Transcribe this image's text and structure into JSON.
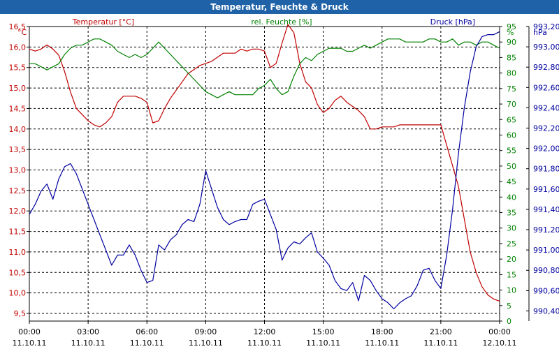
{
  "window": {
    "title": "Temperatur, Feuchte & Druck"
  },
  "chart_data": {
    "type": "line",
    "title": "Temperatur, Feuchte & Druck",
    "x_tick_labels": [
      [
        "00:00",
        "11.10.11"
      ],
      [
        "03:00",
        "11.10.11"
      ],
      [
        "06:00",
        "11.10.11"
      ],
      [
        "09:00",
        "11.10.11"
      ],
      [
        "12:00",
        "11.10.11"
      ],
      [
        "15:00",
        "11.10.11"
      ],
      [
        "18:00",
        "11.10.11"
      ],
      [
        "21:00",
        "11.10.11"
      ],
      [
        "00:00",
        "12.10.11"
      ]
    ],
    "xlim_hours": [
      0,
      24
    ],
    "grid": true,
    "axes": {
      "temperature": {
        "unit": "°C",
        "range": [
          9.5,
          16.5
        ],
        "ticks": [
          "9,5",
          "10,0",
          "10,5",
          "11,0",
          "11,5",
          "12,0",
          "12,5",
          "13,0",
          "13,5",
          "14,0",
          "14,5",
          "15,0",
          "15,5",
          "16,0",
          "16,5"
        ],
        "color": "#c00000"
      },
      "humidity": {
        "unit": "%",
        "range": [
          0,
          95
        ],
        "ticks": [
          "0",
          "5",
          "10",
          "15",
          "20",
          "25",
          "30",
          "35",
          "40",
          "45",
          "50",
          "55",
          "60",
          "65",
          "70",
          "75",
          "80",
          "85",
          "90",
          "95"
        ],
        "color": "#008000"
      },
      "pressure": {
        "unit": "hPa",
        "range": [
          990.3,
          993.2
        ],
        "ticks": [
          "990,40",
          "990,60",
          "990,80",
          "991,00",
          "991,20",
          "991,40",
          "991,60",
          "991,80",
          "992,00",
          "992,20",
          "992,40",
          "992,60",
          "992,80",
          "993,00",
          "993,20"
        ],
        "tick_values": [
          990.4,
          990.6,
          990.8,
          991.0,
          991.2,
          991.4,
          991.6,
          991.8,
          992.0,
          992.2,
          992.4,
          992.6,
          992.8,
          993.0,
          993.2
        ],
        "color": "#0000a0"
      }
    },
    "series": [
      {
        "name": "Temperatur [°C]",
        "axis": "temperature",
        "color": "#c00000",
        "x": [
          0,
          0.3,
          0.6,
          0.9,
          1.2,
          1.5,
          1.8,
          2.1,
          2.4,
          2.7,
          3.0,
          3.3,
          3.6,
          3.9,
          4.2,
          4.5,
          4.8,
          5.1,
          5.4,
          5.7,
          6.0,
          6.3,
          6.6,
          6.9,
          7.2,
          7.5,
          7.8,
          8.1,
          8.4,
          8.7,
          9.0,
          9.3,
          9.6,
          9.9,
          10.2,
          10.5,
          10.8,
          11.1,
          11.4,
          11.7,
          12.0,
          12.3,
          12.6,
          12.9,
          13.2,
          13.5,
          13.8,
          14.1,
          14.4,
          14.7,
          15.0,
          15.3,
          15.6,
          15.9,
          16.2,
          16.5,
          16.8,
          17.1,
          17.4,
          17.7,
          18.0,
          18.3,
          18.6,
          18.9,
          19.2,
          19.5,
          19.8,
          20.1,
          20.4,
          20.7,
          21.0,
          21.3,
          21.6,
          21.9,
          22.2,
          22.5,
          22.8,
          23.1,
          23.4,
          23.7,
          24.0
        ],
        "values": [
          15.95,
          15.9,
          15.95,
          16.05,
          15.95,
          15.8,
          15.4,
          14.9,
          14.5,
          14.35,
          14.2,
          14.1,
          14.05,
          14.15,
          14.3,
          14.65,
          14.8,
          14.8,
          14.8,
          14.75,
          14.65,
          14.15,
          14.2,
          14.5,
          14.75,
          14.95,
          15.15,
          15.35,
          15.45,
          15.55,
          15.6,
          15.65,
          15.75,
          15.85,
          15.85,
          15.85,
          15.95,
          15.9,
          15.95,
          15.95,
          15.9,
          15.5,
          15.6,
          16.1,
          16.55,
          16.35,
          15.6,
          15.15,
          15.0,
          14.6,
          14.4,
          14.5,
          14.7,
          14.8,
          14.65,
          14.55,
          14.45,
          14.3,
          14.0,
          14.0,
          14.05,
          14.05,
          14.05,
          14.1,
          14.1,
          14.1,
          14.1,
          14.1,
          14.1,
          14.1,
          14.1,
          13.6,
          13.1,
          12.6,
          11.8,
          11.0,
          10.5,
          10.15,
          9.95,
          9.85,
          9.8
        ]
      },
      {
        "name": "rel. Feuchte [%]",
        "axis": "humidity",
        "color": "#008000",
        "x": [
          0,
          0.3,
          0.6,
          0.9,
          1.2,
          1.5,
          1.8,
          2.1,
          2.4,
          2.7,
          3.0,
          3.3,
          3.6,
          3.9,
          4.2,
          4.5,
          4.8,
          5.1,
          5.4,
          5.7,
          6.0,
          6.3,
          6.6,
          6.9,
          7.2,
          7.5,
          7.8,
          8.1,
          8.4,
          8.7,
          9.0,
          9.3,
          9.6,
          9.9,
          10.2,
          10.5,
          10.8,
          11.1,
          11.4,
          11.7,
          12.0,
          12.3,
          12.6,
          12.9,
          13.2,
          13.5,
          13.8,
          14.1,
          14.4,
          14.7,
          15.0,
          15.3,
          15.6,
          15.9,
          16.2,
          16.5,
          16.8,
          17.1,
          17.4,
          17.7,
          18.0,
          18.3,
          18.6,
          18.9,
          19.2,
          19.5,
          19.8,
          20.1,
          20.4,
          20.7,
          21.0,
          21.3,
          21.6,
          21.9,
          22.2,
          22.5,
          22.8,
          23.1,
          23.4,
          23.7,
          24.0
        ],
        "values": [
          83,
          83,
          82,
          81,
          82,
          83,
          86,
          88,
          89,
          89,
          90,
          91,
          91,
          90,
          89,
          87,
          86,
          85,
          86,
          85,
          86,
          88,
          90,
          88,
          86,
          84,
          82,
          80,
          78,
          76,
          74,
          73,
          72,
          73,
          74,
          73,
          73,
          73,
          73,
          75,
          76,
          78,
          75,
          73,
          74,
          79,
          83,
          85,
          84,
          86,
          87,
          88,
          88,
          88,
          87,
          87,
          88,
          89,
          88,
          89,
          90,
          91,
          91,
          91,
          90,
          90,
          90,
          90,
          91,
          91,
          90,
          90,
          91,
          89,
          90,
          90,
          89,
          90,
          90,
          89,
          88
        ]
      },
      {
        "name": "Druck [hPa]",
        "axis": "pressure",
        "color": "#0000a0",
        "x": [
          0,
          0.3,
          0.6,
          0.9,
          1.2,
          1.5,
          1.8,
          2.1,
          2.4,
          2.7,
          3.0,
          3.3,
          3.6,
          3.9,
          4.2,
          4.5,
          4.8,
          5.1,
          5.4,
          5.7,
          6.0,
          6.3,
          6.6,
          6.9,
          7.2,
          7.5,
          7.8,
          8.1,
          8.4,
          8.7,
          9.0,
          9.3,
          9.6,
          9.9,
          10.2,
          10.5,
          10.8,
          11.1,
          11.4,
          11.7,
          12.0,
          12.3,
          12.6,
          12.9,
          13.2,
          13.5,
          13.8,
          14.1,
          14.4,
          14.7,
          15.0,
          15.3,
          15.6,
          15.9,
          16.2,
          16.5,
          16.8,
          17.1,
          17.4,
          17.7,
          18.0,
          18.3,
          18.6,
          18.9,
          19.2,
          19.5,
          19.8,
          20.1,
          20.4,
          20.7,
          21.0,
          21.3,
          21.6,
          21.9,
          22.2,
          22.5,
          22.8,
          23.1,
          23.4,
          23.7,
          24.0
        ],
        "values": [
          991.35,
          991.45,
          991.58,
          991.65,
          991.5,
          991.7,
          991.82,
          991.85,
          991.75,
          991.6,
          991.45,
          991.3,
          991.15,
          991.0,
          990.85,
          990.95,
          990.95,
          991.05,
          990.95,
          990.8,
          990.68,
          990.7,
          991.05,
          991.0,
          991.1,
          991.15,
          991.25,
          991.3,
          991.28,
          991.45,
          991.78,
          991.6,
          991.42,
          991.3,
          991.25,
          991.28,
          991.3,
          991.3,
          991.45,
          991.48,
          991.5,
          991.35,
          991.2,
          990.9,
          991.02,
          991.08,
          991.06,
          991.12,
          991.17,
          990.98,
          990.92,
          990.85,
          990.7,
          990.62,
          990.6,
          990.68,
          990.5,
          990.75,
          990.7,
          990.6,
          990.52,
          990.48,
          990.42,
          990.48,
          990.52,
          990.55,
          990.65,
          990.8,
          990.82,
          990.7,
          990.62,
          990.95,
          991.4,
          991.95,
          992.4,
          992.75,
          993.0,
          993.1,
          993.12,
          993.12,
          993.15
        ]
      }
    ]
  }
}
